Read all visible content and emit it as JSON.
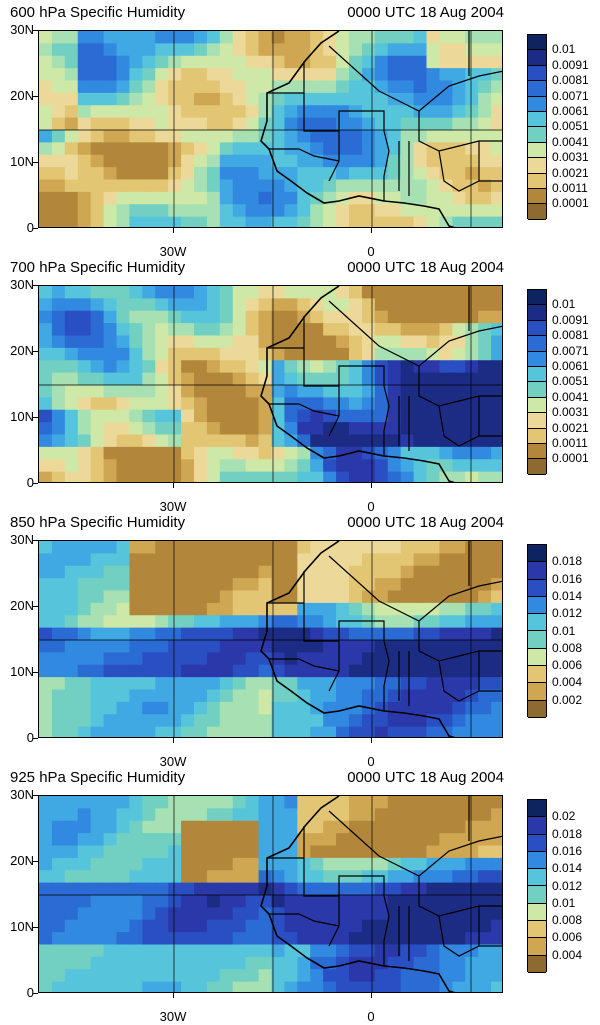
{
  "palette": [
    "#8c6a30",
    "#b2873b",
    "#cfa752",
    "#e3c674",
    "#ecd999",
    "#cde8a7",
    "#a6e0b3",
    "#72d0c2",
    "#56c4da",
    "#40a8e2",
    "#3189e0",
    "#2a6bd4",
    "#2a4fc3",
    "#2a38aa",
    "#1c2c84",
    "#0e2460"
  ],
  "axes": {
    "y_labels": [
      "30N",
      "20N",
      "10N",
      "0"
    ],
    "x_labels": [
      "30W",
      "0"
    ]
  },
  "panels": [
    {
      "title": "600 hPa Specific Humidity",
      "time": "0000 UTC 18 Aug 2004",
      "levels": [
        "0.01",
        "0.0091",
        "0.0081",
        "0.0071",
        "0.0061",
        "0.0051",
        "0.0041",
        "0.0031",
        "0.0021",
        "0.0011",
        "0.0001"
      ]
    },
    {
      "title": "700 hPa Specific Humidity",
      "time": "0000 UTC 18 Aug 2004",
      "levels": [
        "0.01",
        "0.0091",
        "0.0081",
        "0.0071",
        "0.0061",
        "0.0051",
        "0.0041",
        "0.0031",
        "0.0021",
        "0.0011",
        "0.0001"
      ]
    },
    {
      "title": "850 hPa Specific Humidity",
      "time": "0000 UTC 18 Aug 2004",
      "levels": [
        "0.018",
        "0.016",
        "0.014",
        "0.012",
        "0.01",
        "0.008",
        "0.006",
        "0.004",
        "0.002"
      ]
    },
    {
      "title": "925 hPa Specific Humidity",
      "time": "0000 UTC 18 Aug 2004",
      "levels": [
        "0.02",
        "0.018",
        "0.016",
        "0.014",
        "0.012",
        "0.01",
        "0.008",
        "0.006",
        "0.004"
      ]
    }
  ]
}
